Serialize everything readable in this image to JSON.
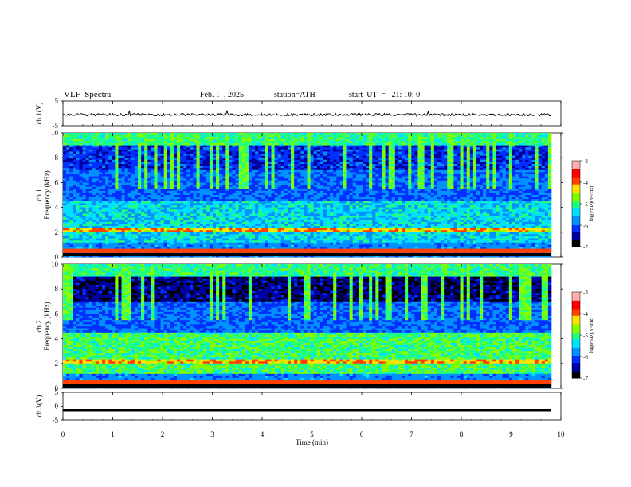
{
  "header": {
    "title": "VLF  Spectra",
    "date": "Feb. 1  , 2025",
    "station": "station=ATH",
    "start": "start  UT  =   21: 10: 0"
  },
  "chart_data": [
    {
      "type": "line",
      "panel": "ch1-waveform",
      "ylabel": "ch.1(V)",
      "ylim": [
        -5,
        5
      ],
      "ytick_labels": [
        "5",
        "-5"
      ],
      "xlim": [
        0,
        10
      ],
      "trace_level_v": -0.5,
      "series": [
        {
          "amplitude_approx_v": 1
        }
      ]
    },
    {
      "type": "heatmap",
      "panel": "ch1-spectrogram",
      "ylabel": "ch.1\nFrequency  (kHz)",
      "ylim": [
        0,
        10
      ],
      "yticks": [
        0,
        2,
        4,
        6,
        8,
        10
      ],
      "xlim": [
        0,
        9.8
      ],
      "colorbar": {
        "label": "log(PSD)(V²/Hz)",
        "range": [
          -7,
          -3
        ],
        "ticks": [
          "-3",
          "-4",
          "-5",
          "-6",
          "-7"
        ]
      }
    },
    {
      "type": "heatmap",
      "panel": "ch2-spectrogram",
      "ylabel": "ch.2\nFrequency  (kHz)",
      "ylim": [
        0,
        10
      ],
      "yticks": [
        0,
        2,
        4,
        6,
        8,
        10
      ],
      "xlim": [
        0,
        9.8
      ],
      "colorbar": {
        "label": "log(PSD)(V²/Hz)",
        "range": [
          -7,
          -3
        ],
        "ticks": [
          "-3",
          "-4",
          "-5",
          "-6",
          "-7"
        ]
      }
    },
    {
      "type": "line",
      "panel": "ch3-waveform",
      "ylabel": "ch.3(V)",
      "ylim": [
        -5,
        5
      ],
      "ytick_labels": [
        "5",
        "0",
        "-5"
      ],
      "xlim": [
        0,
        10
      ],
      "trace_level_v": -1.5
    }
  ],
  "x_axis": {
    "label": "Time  (min)",
    "ticks": [
      "0",
      "1",
      "2",
      "3",
      "4",
      "5",
      "6",
      "7",
      "8",
      "9",
      "10"
    ]
  },
  "colors": {
    "colormap": [
      "#000000",
      "#0000a0",
      "#0030ff",
      "#0090ff",
      "#00e0ff",
      "#20ff80",
      "#80ff00",
      "#ffe000",
      "#ff4000",
      "#ff0000",
      "#ffb0b0",
      "#ffffff"
    ]
  }
}
